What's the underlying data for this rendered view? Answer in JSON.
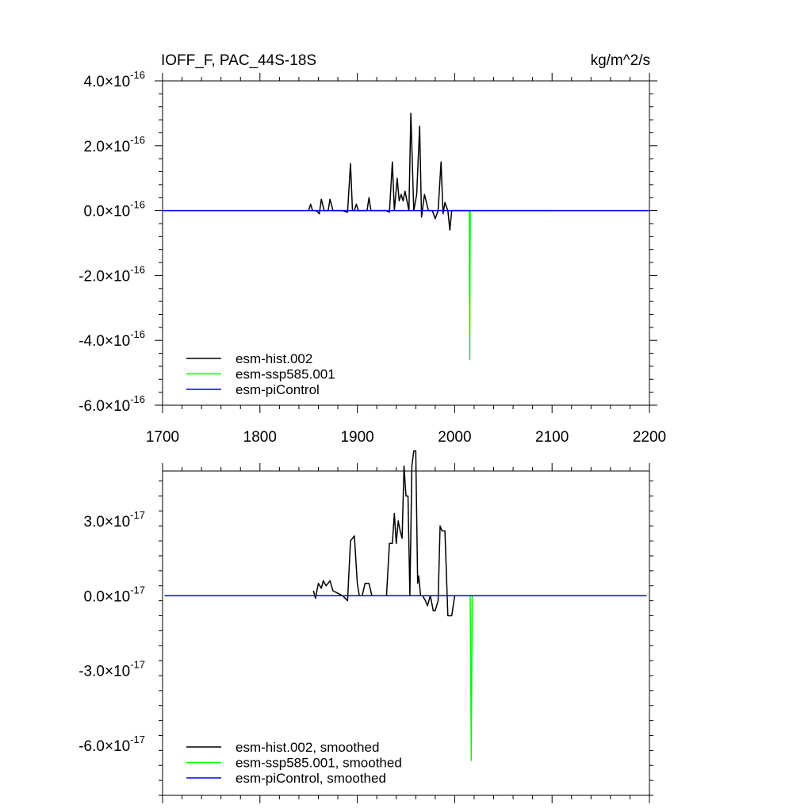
{
  "colors": {
    "black": "#000000",
    "green": "#00ff00",
    "blue": "#0000ff"
  },
  "chart_data": [
    {
      "type": "line",
      "title": "IOFF_F, PAC_44S-18S",
      "units": "kg/m^2/s",
      "xlim": [
        1700,
        2200
      ],
      "ylim": [
        -6e-16,
        4e-16
      ],
      "grid": false,
      "legend_position": "bottom-left",
      "x_ticks": [
        {
          "value": 1700,
          "label": "1700"
        },
        {
          "value": 1800,
          "label": "1800"
        },
        {
          "value": 1900,
          "label": "1900"
        },
        {
          "value": 2000,
          "label": "2000"
        },
        {
          "value": 2100,
          "label": "2100"
        },
        {
          "value": 2200,
          "label": "2200"
        }
      ],
      "y_ticks": [
        {
          "value": 4e-16,
          "mant": "4.0",
          "exp": "-16"
        },
        {
          "value": 2e-16,
          "mant": "2.0",
          "exp": "-16"
        },
        {
          "value": 0.0,
          "mant": "0.0",
          "exp": "-16"
        },
        {
          "value": -2e-16,
          "mant": "-2.0",
          "exp": "-16"
        },
        {
          "value": -4e-16,
          "mant": "-4.0",
          "exp": "-16"
        },
        {
          "value": -6e-16,
          "mant": "-6.0",
          "exp": "-16"
        }
      ],
      "series": [
        {
          "name": "esm-hist.002",
          "color": "#000000",
          "x": [
            1850,
            1852,
            1854,
            1858,
            1861,
            1863,
            1866,
            1870,
            1872,
            1875,
            1885,
            1890,
            1893,
            1895,
            1897,
            1899,
            1901,
            1905,
            1910,
            1912,
            1914,
            1930,
            1933,
            1936,
            1938,
            1941,
            1943,
            1945,
            1947,
            1949,
            1951,
            1953,
            1955,
            1958,
            1961,
            1964,
            1966,
            1969,
            1973,
            1977,
            1980,
            1983,
            1986,
            1988,
            1990,
            1993,
            1995,
            1997,
            2000,
            2014
          ],
          "y": [
            0,
            2e-17,
            0,
            0,
            -1e-17,
            3.5e-17,
            0,
            0,
            3.5e-17,
            0,
            0,
            -5e-18,
            1.45e-16,
            0,
            0,
            2e-17,
            0,
            0,
            0,
            4e-17,
            0,
            0,
            -5e-18,
            1.5e-16,
            0,
            1e-16,
            3e-17,
            5e-17,
            3e-17,
            6e-17,
            3e-17,
            0,
            3e-16,
            0,
            5e-17,
            2.6e-16,
            -2e-17,
            5e-17,
            0,
            0,
            -2.5e-17,
            0,
            1.5e-16,
            -1e-17,
            2.5e-17,
            0,
            -6e-17,
            0,
            0,
            0
          ]
        },
        {
          "name": "esm-ssp585.001",
          "color": "#00ff00",
          "x": [
            2014,
            2015,
            2015.5,
            2016,
            2100
          ],
          "y": [
            0,
            0,
            -4.6e-16,
            0,
            0
          ]
        },
        {
          "name": "esm-piControl",
          "color": "#0000ff",
          "x": [
            1700,
            2200
          ],
          "y": [
            0,
            0
          ]
        }
      ]
    },
    {
      "type": "line",
      "xlim": [
        1700,
        2200
      ],
      "ylim": [
        -8e-17,
        5e-17
      ],
      "grid": false,
      "legend_position": "bottom-left",
      "y_ticks": [
        {
          "value": 3e-17,
          "mant": "3.0",
          "exp": "-17"
        },
        {
          "value": 0.0,
          "mant": "0.0",
          "exp": "-17"
        },
        {
          "value": -3e-17,
          "mant": "-3.0",
          "exp": "-17"
        },
        {
          "value": -6e-17,
          "mant": "-6.0",
          "exp": "-17"
        }
      ],
      "series": [
        {
          "name": "esm-hist.002, smoothed",
          "color": "#000000",
          "x": [
            1855,
            1857,
            1860,
            1863,
            1865,
            1868,
            1872,
            1875,
            1880,
            1885,
            1890,
            1893,
            1895,
            1897,
            1900,
            1902,
            1905,
            1908,
            1912,
            1915,
            1920,
            1928,
            1930,
            1933,
            1936,
            1938,
            1940,
            1942,
            1944,
            1946,
            1948,
            1950,
            1952,
            1954,
            1956,
            1958,
            1960,
            1962,
            1963,
            1965,
            1967,
            1970,
            1972,
            1975,
            1978,
            1980,
            1983,
            1985,
            1987,
            1990,
            1993,
            1995,
            1997,
            2000,
            2002
          ],
          "y": [
            2e-18,
            -1e-18,
            5e-18,
            3e-18,
            6e-18,
            4e-18,
            6e-18,
            2e-18,
            1e-18,
            0,
            -2e-18,
            2.2e-17,
            2.3e-17,
            2.4e-17,
            5e-18,
            0,
            0,
            5e-18,
            5e-18,
            0,
            0,
            0,
            0,
            2.1e-17,
            2.1e-17,
            3.3e-17,
            2.1e-17,
            3e-17,
            2.6e-17,
            2.3e-17,
            5.2e-17,
            4e-17,
            4e-17,
            0,
            5.2e-17,
            5.8e-17,
            5.8e-17,
            5e-18,
            8e-18,
            0,
            0,
            -2e-18,
            -4e-18,
            0,
            -6e-18,
            -6e-18,
            -2e-18,
            2.8e-17,
            2.6e-17,
            2.6e-17,
            -8e-18,
            -8e-18,
            -8e-18,
            0,
            0
          ],
          "y_note": ""
        },
        {
          "name": "esm-ssp585.001, smoothed",
          "color": "#00ff00",
          "x": [
            2015,
            2016,
            2017,
            2018,
            2100
          ],
          "y": [
            0,
            0,
            -6.6e-17,
            0,
            0
          ]
        },
        {
          "name": "esm-piControl, smoothed",
          "color": "#0000ff",
          "x": [
            1702,
            2197
          ],
          "y": [
            0,
            0
          ]
        }
      ]
    }
  ]
}
